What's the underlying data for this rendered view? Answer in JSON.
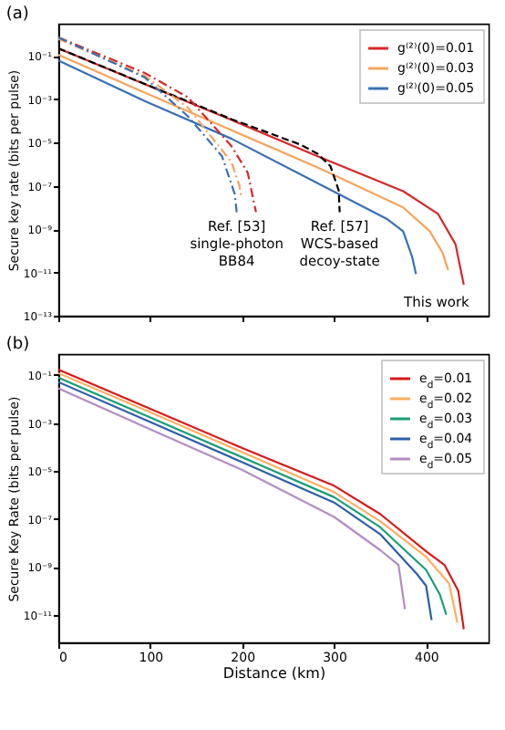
{
  "chart_data": [
    {
      "type": "line",
      "title": "(a)",
      "ylabel": "Secure key rate (bits per pulse)",
      "log": "y",
      "grid": false,
      "legend": "top right",
      "tick_labels": "y",
      "xlim": [
        0,
        468
      ],
      "xticks": [
        0,
        100,
        200,
        300,
        400
      ],
      "ylim": [
        1e-13,
        3
      ],
      "yticks": [
        {
          "value": 0.1,
          "label": "10⁻¹"
        },
        {
          "value": 0.001,
          "label": "10⁻³"
        },
        {
          "value": 1e-05,
          "label": "10⁻⁵"
        },
        {
          "value": 1e-07,
          "label": "10⁻⁷"
        },
        {
          "value": 1e-09,
          "label": "10⁻⁹"
        },
        {
          "value": 1e-11,
          "label": "10⁻¹¹"
        },
        {
          "value": 1e-13,
          "label": "10⁻¹³"
        }
      ],
      "series": [
        {
          "name": "g⁽²⁾(0)=0.01",
          "color": "#d62728",
          "line_style": "solid",
          "x": [
            0,
            94,
            188,
            282,
            375,
            413,
            432,
            441
          ],
          "values": [
            0.22,
            0.0049,
            0.00011,
            2.3e-06,
            5.6e-08,
            5e-09,
            2e-10,
            2.7e-12
          ]
        },
        {
          "name": "g⁽²⁾(0)=0.03",
          "color": "#f5a45a",
          "line_style": "solid",
          "x": [
            0,
            94,
            188,
            282,
            375,
            404,
            418,
            424
          ],
          "values": [
            0.11,
            0.002,
            3.7e-05,
            7e-07,
            1e-08,
            8e-10,
            8e-11,
            1.3e-11
          ]
        },
        {
          "name": "g⁽²⁾(0)=0.05",
          "color": "#3a6fb5",
          "line_style": "solid",
          "x": [
            0,
            94,
            188,
            282,
            357,
            375,
            385,
            389
          ],
          "values": [
            0.06,
            0.0008,
            1.5e-05,
            1.3e-07,
            3e-09,
            8e-10,
            5e-11,
            8.5e-12
          ]
        },
        {
          "color": "#000000",
          "line_style": "dashed",
          "x": [
            0,
            94,
            188,
            263,
            282,
            296,
            305,
            306
          ],
          "values": [
            0.22,
            0.005,
            0.00012,
            8e-06,
            3e-06,
            8e-07,
            6e-08,
            6e-09
          ]
        },
        {
          "color": "#d62728",
          "line_style": "dashdot",
          "x": [
            0,
            94,
            141,
            188,
            206,
            215
          ],
          "values": [
            0.7,
            0.016,
            0.0012,
            7e-06,
            4e-07,
            6e-09
          ]
        },
        {
          "color": "#f5a45a",
          "line_style": "dashdot",
          "x": [
            0,
            94,
            141,
            188,
            197,
            199
          ],
          "values": [
            0.6,
            0.012,
            0.0004,
            1.3e-06,
            1e-07,
            3e-08
          ]
        },
        {
          "color": "#3a6fb5",
          "line_style": "dashdot",
          "x": [
            0,
            94,
            141,
            178,
            192,
            194
          ],
          "values": [
            0.7,
            0.01,
            0.00016,
            2.3e-06,
            4e-08,
            6e-09
          ]
        }
      ],
      "annotations": [
        {
          "text": "Ref. [53]\nsingle-photon\nBB84",
          "x": 194,
          "y": 6e-09
        },
        {
          "text": "Ref. [57]\nWCS-based\ndecoy-state",
          "x": 306,
          "y": 6e-09
        },
        {
          "text": "This work",
          "x": 441,
          "y": 2.7e-12
        }
      ]
    },
    {
      "type": "line",
      "title": "(b)",
      "xlabel": "Distance (km)",
      "ylabel": "Secure Key Rate (bits per pulse)",
      "log": "y",
      "grid": false,
      "legend": "top right",
      "xlim": [
        0,
        468
      ],
      "xticks": [
        0,
        100,
        200,
        300,
        400
      ],
      "ylim": [
        7e-13,
        0.75
      ],
      "yticks": [
        {
          "value": 0.1,
          "label": "10⁻¹"
        },
        {
          "value": 0.001,
          "label": "10⁻³"
        },
        {
          "value": 1e-05,
          "label": "10⁻⁵"
        },
        {
          "value": 1e-07,
          "label": "10⁻⁷"
        },
        {
          "value": 1e-09,
          "label": "10⁻⁹"
        },
        {
          "value": 1e-11,
          "label": "10⁻¹¹"
        }
      ],
      "series": [
        {
          "name": "e$_{d}$=0.01",
          "color": "#d7191c",
          "line_style": "solid",
          "x": [
            0,
            100,
            200,
            300,
            350,
            400,
            420,
            435,
            441
          ],
          "values": [
            0.17,
            0.0039,
            9e-05,
            2.4e-06,
            1.6e-07,
            4.4e-09,
            1.2e-09,
            1e-10,
            2.5e-12
          ]
        },
        {
          "name": "e$_{d}$=0.02",
          "color": "#fdae61",
          "line_style": "solid",
          "x": [
            0,
            100,
            200,
            300,
            350,
            400,
            425,
            434
          ],
          "values": [
            0.12,
            0.0028,
            6e-05,
            1.3e-06,
            8e-08,
            2.6e-09,
            2e-10,
            4.7e-12
          ]
        },
        {
          "name": "e$_{d}$=0.03",
          "color": "#1a9e77",
          "line_style": "solid",
          "x": [
            0,
            100,
            200,
            300,
            350,
            400,
            415,
            422
          ],
          "values": [
            0.078,
            0.0017,
            3.7e-05,
            8e-07,
            4.5e-08,
            7.4e-10,
            7e-11,
            1e-11
          ]
        },
        {
          "name": "e$_{d}$=0.04",
          "color": "#2c5fa8",
          "line_style": "solid",
          "x": [
            0,
            100,
            200,
            300,
            350,
            390,
            400,
            406
          ],
          "values": [
            0.051,
            0.0011,
            2.3e-05,
            4.8e-07,
            2.3e-08,
            5e-10,
            1.6e-10,
            6e-12
          ]
        },
        {
          "name": "e$_{d}$=0.05",
          "color": "#b28dc4",
          "line_style": "solid",
          "x": [
            0,
            100,
            200,
            300,
            350,
            370,
            377
          ],
          "values": [
            0.028,
            0.00054,
            1.1e-05,
            1.2e-07,
            5e-09,
            1.2e-09,
            1.7e-11
          ]
        }
      ]
    }
  ]
}
